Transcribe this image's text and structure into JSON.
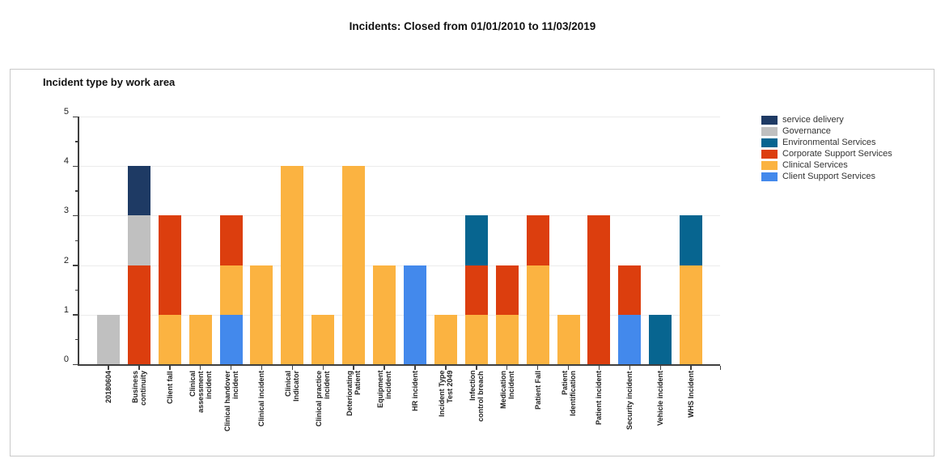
{
  "page": {
    "title": "Incidents: Closed from 01/01/2010 to 11/03/2019"
  },
  "panel": {
    "title": "Incident type by work area"
  },
  "colors": {
    "axis": "#3f3f3f",
    "gridline": "#ebebeb",
    "panel_border": "#c9c9c9",
    "background": "#ffffff"
  },
  "chart_data": {
    "type": "bar",
    "stacked": true,
    "title": "Incident type by work area",
    "xlabel": "",
    "ylabel": "",
    "ylim": [
      0,
      5
    ],
    "yticks": [
      0,
      1,
      2,
      3,
      4,
      5
    ],
    "minor_tick_step": 0.5,
    "grid": "horizontal",
    "legend_position": "right",
    "categories": [
      "20180604",
      "Business\ncontinuity",
      "Client fall",
      "Clinical\nassessment\nincident",
      "Clinical handover\nincident",
      "Clinical incident",
      "Clinical\nIndicator",
      "Clinical practice\nincident",
      "Deteriorating\nPatient",
      "Equipment\nincident",
      "HR incident",
      "Incident Type\nTest 2049",
      "Infection\ncontrol breach",
      "Medication\nIncident",
      "Patient Fall",
      "Patient\nIdentification",
      "Patient incident",
      "Security incident",
      "Vehicle incident",
      "WHS Incident"
    ],
    "series": [
      {
        "name": "service delivery",
        "color": "#1e3a64",
        "values": [
          0,
          1,
          0,
          0,
          0,
          0,
          0,
          0,
          0,
          0,
          0,
          0,
          0,
          0,
          0,
          0,
          0,
          0,
          0,
          0
        ]
      },
      {
        "name": "Governance",
        "color": "#c0c0c0",
        "values": [
          1,
          1,
          0,
          0,
          0,
          0,
          0,
          0,
          0,
          0,
          0,
          0,
          0,
          0,
          0,
          0,
          0,
          0,
          0,
          0
        ]
      },
      {
        "name": "Environmental Services",
        "color": "#076590",
        "values": [
          0,
          0,
          0,
          0,
          0,
          0,
          0,
          0,
          0,
          0,
          0,
          0,
          1,
          0,
          0,
          0,
          0,
          0,
          1,
          1
        ]
      },
      {
        "name": "Corporate Support Services",
        "color": "#dc3e0e",
        "values": [
          0,
          2,
          2,
          0,
          1,
          0,
          0,
          0,
          0,
          0,
          0,
          0,
          1,
          1,
          1,
          0,
          3,
          1,
          0,
          0
        ]
      },
      {
        "name": "Clinical Services",
        "color": "#fbb341",
        "values": [
          0,
          0,
          1,
          1,
          1,
          2,
          4,
          1,
          4,
          2,
          0,
          1,
          1,
          1,
          2,
          1,
          0,
          0,
          0,
          2
        ]
      },
      {
        "name": "Client Support Services",
        "color": "#4389ec",
        "values": [
          0,
          0,
          0,
          0,
          1,
          0,
          0,
          0,
          0,
          0,
          2,
          0,
          0,
          0,
          0,
          0,
          0,
          1,
          0,
          0
        ]
      }
    ],
    "stack_order_bottom_to_top": [
      "Client Support Services",
      "Clinical Services",
      "Corporate Support Services",
      "Environmental Services",
      "Governance",
      "service delivery"
    ]
  }
}
